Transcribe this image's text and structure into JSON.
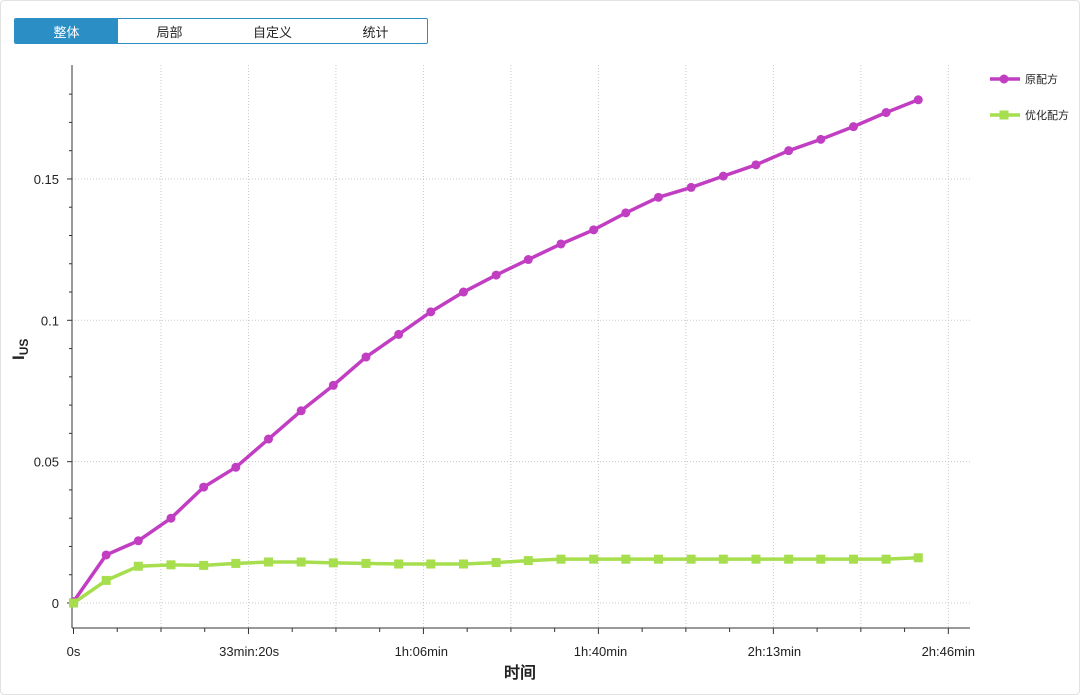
{
  "tabs": [
    {
      "label": "整体",
      "active": true
    },
    {
      "label": "局部",
      "active": false
    },
    {
      "label": "自定义",
      "active": false
    },
    {
      "label": "统计",
      "active": false
    }
  ],
  "chart_data": {
    "type": "line",
    "title": "",
    "xlabel": "时间",
    "ylabel_main": "I",
    "ylabel_sub": "US",
    "x_ticks": [
      "0s",
      "33min:20s",
      "1h:06min",
      "1h:40min",
      "2h:13min",
      "2h:46min"
    ],
    "y_ticks": [
      "0",
      "0.05",
      "0.1",
      "0.15"
    ],
    "ylim": [
      0,
      0.185
    ],
    "grid": true,
    "legend_position": "top-right",
    "x_minutes": [
      0,
      6.2,
      12.3,
      18.5,
      24.7,
      30.8,
      37.0,
      43.2,
      49.3,
      55.5,
      61.7,
      67.8,
      74.0,
      80.2,
      86.3,
      92.5,
      98.7,
      104.8,
      111.0,
      117.2,
      123.3,
      129.5,
      135.7,
      141.8,
      148.0,
      154.2,
      160.3
    ],
    "series": [
      {
        "name": "原配方",
        "color": "#c13ec3",
        "marker": "circle",
        "values": [
          0.0005,
          0.017,
          0.022,
          0.03,
          0.041,
          0.048,
          0.058,
          0.068,
          0.077,
          0.087,
          0.095,
          0.103,
          0.11,
          0.116,
          0.1215,
          0.127,
          0.132,
          0.138,
          0.1435,
          0.147,
          0.151,
          0.155,
          0.16,
          0.164,
          0.1685,
          0.1735,
          0.178
        ]
      },
      {
        "name": "优化配方",
        "color": "#a6de4e",
        "marker": "square",
        "values": [
          0.0,
          0.008,
          0.013,
          0.0135,
          0.0133,
          0.014,
          0.0145,
          0.0145,
          0.0142,
          0.014,
          0.0138,
          0.0138,
          0.0138,
          0.0143,
          0.015,
          0.0155,
          0.0155,
          0.0155,
          0.0155,
          0.0155,
          0.0155,
          0.0155,
          0.0155,
          0.0155,
          0.0155,
          0.0155,
          0.016
        ]
      }
    ]
  }
}
